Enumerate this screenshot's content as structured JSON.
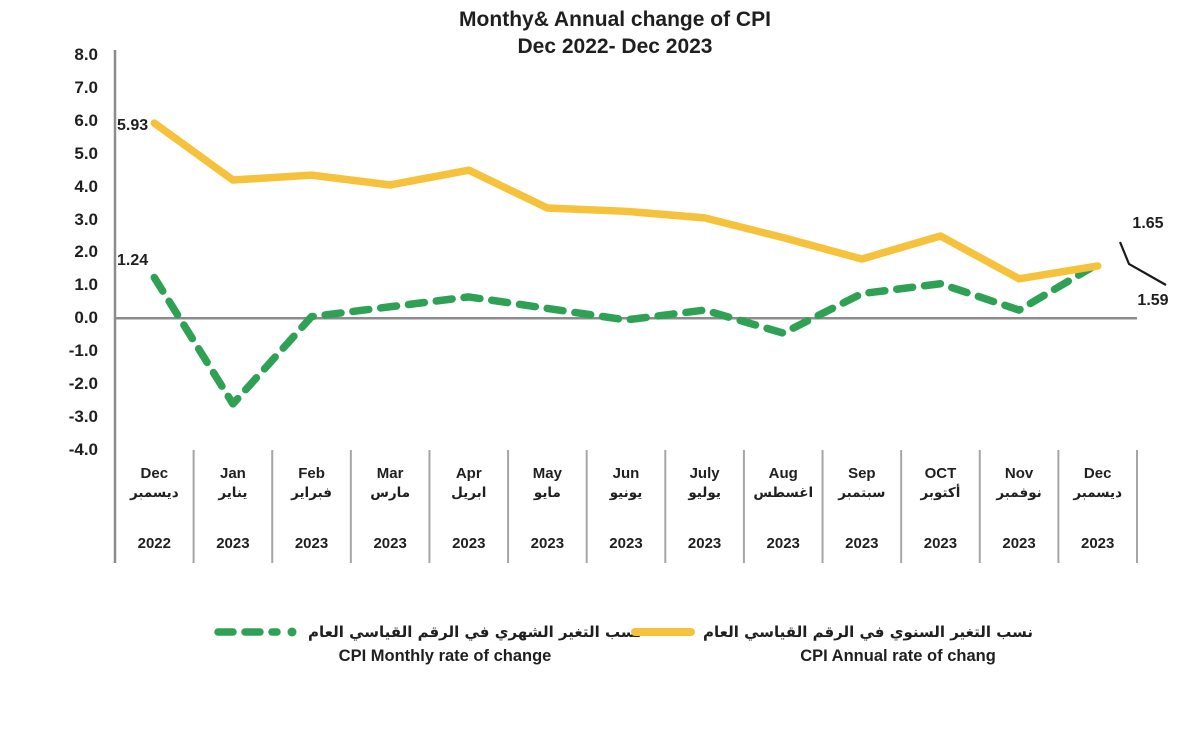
{
  "title": {
    "line1": "Monthy& Annual change of CPI",
    "line2": "Dec 2022- Dec 2023"
  },
  "colors": {
    "annual_line": "#F6C13B",
    "monthly_line": "#2FA155",
    "axis_gray": "#8C8C8C",
    "separator_gray": "#A6A6A6",
    "text_dark": "#1F1F1F",
    "leader_black": "#1A1A1A"
  },
  "chart_data": {
    "type": "line",
    "title": "Monthy& Annual change of CPI Dec 2022- Dec 2023",
    "categories": [
      {
        "en": "Dec",
        "ar": "ديسمبر",
        "year": "2022"
      },
      {
        "en": "Jan",
        "ar": "يناير",
        "year": "2023"
      },
      {
        "en": "Feb",
        "ar": "فبراير",
        "year": "2023"
      },
      {
        "en": "Mar",
        "ar": "مارس",
        "year": "2023"
      },
      {
        "en": "Apr",
        "ar": "ابريل",
        "year": "2023"
      },
      {
        "en": "May",
        "ar": "مايو",
        "year": "2023"
      },
      {
        "en": "Jun",
        "ar": "يونيو",
        "year": "2023"
      },
      {
        "en": "July",
        "ar": "يوليو",
        "year": "2023"
      },
      {
        "en": "Aug",
        "ar": "اغسطس",
        "year": "2023"
      },
      {
        "en": "Sep",
        "ar": "سبتمبر",
        "year": "2023"
      },
      {
        "en": "OCT",
        "ar": "أكتوبر",
        "year": "2023"
      },
      {
        "en": "Nov",
        "ar": "نوفمبر",
        "year": "2023"
      },
      {
        "en": "Dec",
        "ar": "ديسمبر",
        "year": "2023"
      }
    ],
    "series": [
      {
        "name_en": "CPI Annual rate of chang",
        "name_ar": "نسب التغير السنوي في الرقم القياسي العام",
        "color": "#F6C13B",
        "style": "solid",
        "values": [
          5.93,
          4.2,
          4.35,
          4.05,
          4.5,
          3.35,
          3.25,
          3.05,
          2.45,
          1.8,
          2.5,
          1.2,
          1.59
        ]
      },
      {
        "name_en": "CPI Monthly rate of change",
        "name_ar": "نسب التغير الشهري في الرقم القياسي العام",
        "color": "#2FA155",
        "style": "dashed",
        "values": [
          1.24,
          -2.6,
          0.05,
          0.35,
          0.65,
          0.3,
          -0.05,
          0.25,
          -0.45,
          0.75,
          1.05,
          0.25,
          1.65
        ]
      }
    ],
    "y_axis": {
      "min": -4.0,
      "max": 8.0,
      "step": 1.0,
      "tick_labels": [
        "8.0",
        "7.0",
        "6.0",
        "5.0",
        "4.0",
        "3.0",
        "2.0",
        "1.0",
        "0.0",
        "-1.0",
        "-2.0",
        "-3.0",
        "-4.0"
      ]
    },
    "grid": "off",
    "legend_position": "bottom",
    "annotations": [
      {
        "label": "5.93",
        "series": "annual",
        "point": "Dec 2022"
      },
      {
        "label": "1.24",
        "series": "monthly",
        "point": "Dec 2022"
      },
      {
        "label": "1.65",
        "series": "monthly",
        "point": "Dec 2023"
      },
      {
        "label": "1.59",
        "series": "annual",
        "point": "Dec 2023"
      }
    ]
  }
}
